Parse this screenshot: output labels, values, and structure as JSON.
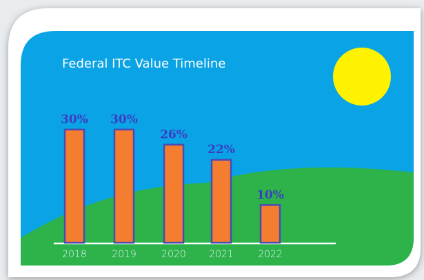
{
  "chart_data": {
    "type": "bar",
    "title": "Federal ITC Value Timeline",
    "categories": [
      "2018",
      "2019",
      "2020",
      "2021",
      "2022"
    ],
    "values": [
      30,
      30,
      26,
      22,
      10
    ],
    "value_labels": [
      "30%",
      "30%",
      "26%",
      "22%",
      "10%"
    ],
    "color": "#f47d30",
    "edge_color": "#4b4bb4",
    "label_color": "#3c3cc0"
  }
}
